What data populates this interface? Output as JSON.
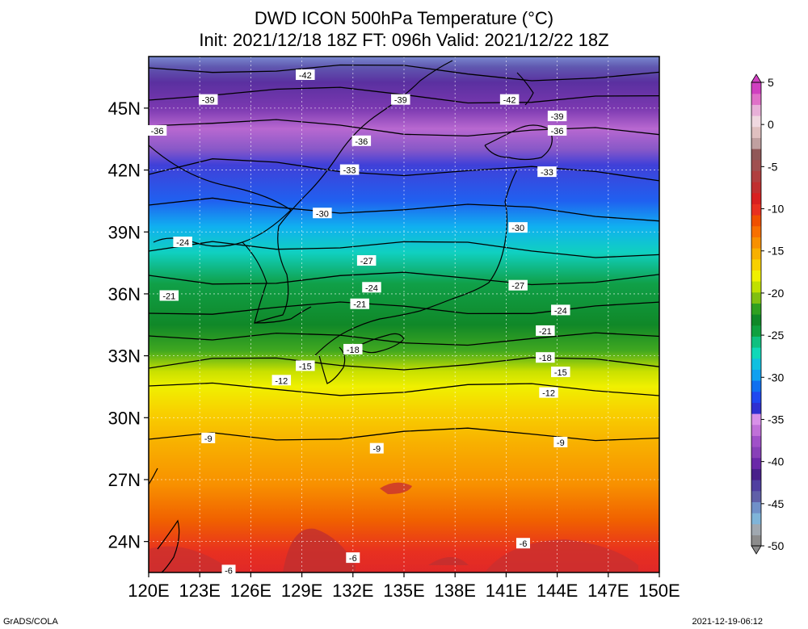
{
  "title_line1": "DWD ICON 500hPa Temperature (°C)",
  "title_line2": "Init: 2021/12/18 18Z  FT: 096h  Valid: 2021/12/22 18Z",
  "footer_left": "GrADS/COLA",
  "footer_right": "2021-12-19-06:12",
  "map": {
    "lon_labels": [
      "120E",
      "123E",
      "126E",
      "129E",
      "132E",
      "135E",
      "138E",
      "141E",
      "144E",
      "147E",
      "150E"
    ],
    "lat_labels": [
      "45N",
      "42N",
      "39N",
      "36N",
      "33N",
      "30N",
      "27N",
      "24N"
    ],
    "lon_range": [
      120,
      150
    ],
    "lat_range": [
      22.5,
      47.5
    ]
  },
  "colorbar": {
    "tick_labels": [
      "5",
      "0",
      "-5",
      "-10",
      "-15",
      "-20",
      "-25",
      "-30",
      "-35",
      "-40",
      "-45",
      "-50"
    ],
    "range": [
      -50,
      5
    ],
    "colors": [
      "#8c8c8c",
      "#a0a8b0",
      "#7fb4d8",
      "#7090c8",
      "#6060a8",
      "#5040a0",
      "#48208a",
      "#6a28a8",
      "#8840b8",
      "#a050c8",
      "#c070d8",
      "#d890e8",
      "#3030d0",
      "#2048f0",
      "#1070f0",
      "#10a0f0",
      "#10c0e0",
      "#10d8b8",
      "#10c080",
      "#10a040",
      "#108828",
      "#30a020",
      "#80c010",
      "#c0e000",
      "#f0f000",
      "#f8d000",
      "#f8b000",
      "#f89000",
      "#f87000",
      "#f05000",
      "#e83020",
      "#d82020",
      "#c03030",
      "#b04040",
      "#a05050",
      "#905858",
      "#c0a0a0",
      "#e0c0c0",
      "#f0d8e0",
      "#e8b0d8",
      "#e070c8",
      "#d040c0"
    ]
  },
  "contour_labels": [
    {
      "value": "-42",
      "lon": 129.2,
      "lat": 46.6
    },
    {
      "value": "-42",
      "lon": 141.2,
      "lat": 45.4
    },
    {
      "value": "-39",
      "lon": 123.5,
      "lat": 45.4
    },
    {
      "value": "-39",
      "lon": 134.8,
      "lat": 45.4
    },
    {
      "value": "-39",
      "lon": 144.0,
      "lat": 44.6
    },
    {
      "value": "-36",
      "lon": 120.5,
      "lat": 43.9
    },
    {
      "value": "-36",
      "lon": 132.5,
      "lat": 43.4
    },
    {
      "value": "-36",
      "lon": 144.0,
      "lat": 43.9
    },
    {
      "value": "-33",
      "lon": 131.8,
      "lat": 42.0
    },
    {
      "value": "-33",
      "lon": 143.4,
      "lat": 41.9
    },
    {
      "value": "-30",
      "lon": 130.2,
      "lat": 39.9
    },
    {
      "value": "-30",
      "lon": 141.7,
      "lat": 39.2
    },
    {
      "value": "-27",
      "lon": 132.8,
      "lat": 37.6
    },
    {
      "value": "-27",
      "lon": 141.7,
      "lat": 36.4
    },
    {
      "value": "-24",
      "lon": 122.0,
      "lat": 38.5
    },
    {
      "value": "-24",
      "lon": 133.1,
      "lat": 36.3
    },
    {
      "value": "-24",
      "lon": 144.2,
      "lat": 35.2
    },
    {
      "value": "-21",
      "lon": 121.2,
      "lat": 35.9
    },
    {
      "value": "-21",
      "lon": 132.4,
      "lat": 35.5
    },
    {
      "value": "-21",
      "lon": 143.3,
      "lat": 34.2
    },
    {
      "value": "-18",
      "lon": 132.0,
      "lat": 33.3
    },
    {
      "value": "-18",
      "lon": 143.3,
      "lat": 32.9
    },
    {
      "value": "-15",
      "lon": 129.2,
      "lat": 32.5
    },
    {
      "value": "-15",
      "lon": 144.2,
      "lat": 32.2
    },
    {
      "value": "-12",
      "lon": 127.8,
      "lat": 31.8
    },
    {
      "value": "-12",
      "lon": 143.5,
      "lat": 31.2
    },
    {
      "value": "-9",
      "lon": 123.5,
      "lat": 29.0
    },
    {
      "value": "-9",
      "lon": 133.4,
      "lat": 28.5
    },
    {
      "value": "-9",
      "lon": 144.2,
      "lat": 28.8
    },
    {
      "value": "-6",
      "lon": 142.0,
      "lat": 23.9
    },
    {
      "value": "-6",
      "lon": 132.0,
      "lat": 23.2
    },
    {
      "value": "-6",
      "lon": 124.7,
      "lat": 22.6
    }
  ]
}
